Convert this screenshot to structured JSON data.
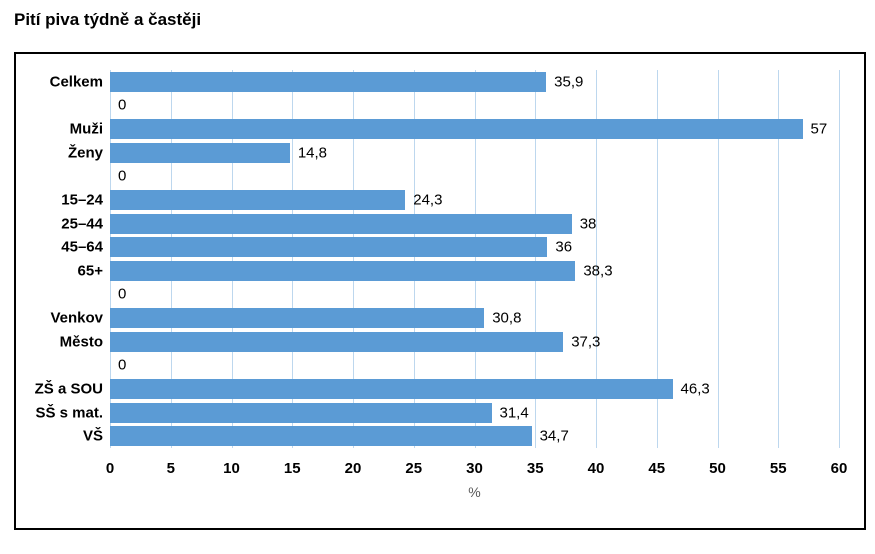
{
  "title": "Pití piva týdně a častěji",
  "chart_data": {
    "type": "bar",
    "orientation": "horizontal",
    "title": "Pití piva týdně a častěji",
    "xlabel": "%",
    "xlim": [
      0,
      60
    ],
    "xticks": [
      0,
      5,
      10,
      15,
      20,
      25,
      30,
      35,
      40,
      45,
      50,
      55,
      60
    ],
    "grid": true,
    "legend": false,
    "bar_color": "#5B9BD5",
    "gridline_color": "#BDD7EE",
    "categories": [
      "Celkem",
      "",
      "Muži",
      "Ženy",
      "",
      "15–24",
      "25–44",
      "45–64",
      "65+",
      "",
      "Venkov",
      "Město",
      "",
      "ZŠ a SOU",
      "SŠ s mat.",
      "VŠ"
    ],
    "values": [
      35.9,
      0,
      57,
      14.8,
      0,
      24.3,
      38,
      36,
      38.3,
      0,
      30.8,
      37.3,
      0,
      46.3,
      31.4,
      34.7
    ],
    "value_labels": [
      "35,9",
      "0",
      "57",
      "14,8",
      "0",
      "24,3",
      "38",
      "36",
      "38,3",
      "0",
      "30,8",
      "37,3",
      "0",
      "46,3",
      "31,4",
      "34,7"
    ]
  }
}
